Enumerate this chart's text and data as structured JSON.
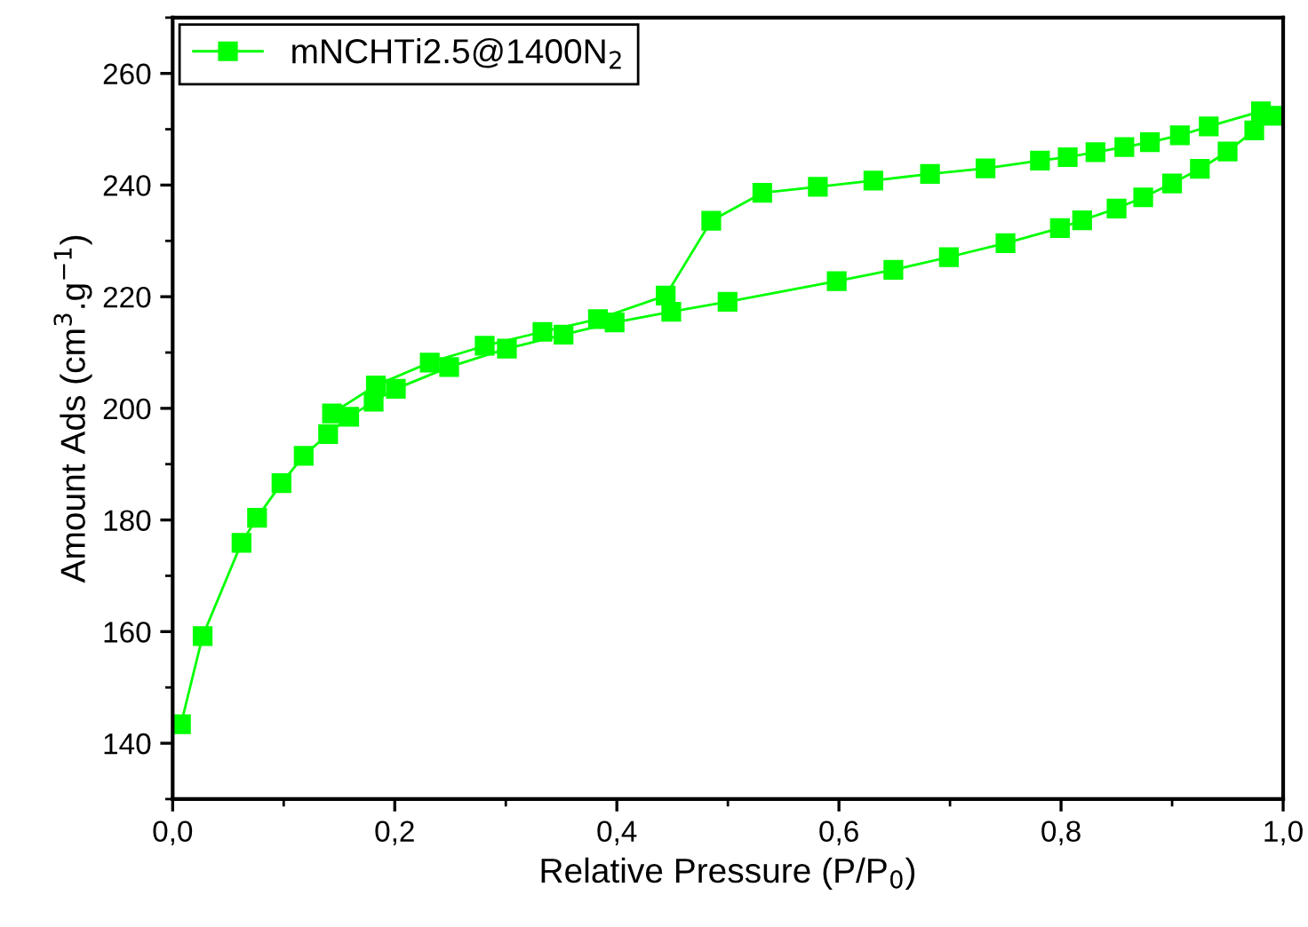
{
  "chart_data": {
    "type": "line",
    "xlabel": "Relative Pressure (P/P$_{0}$)",
    "ylabel": "Amount Ads (cm$^{3}$.g$^{−1}$)",
    "xlim": [
      0,
      1
    ],
    "ylim": [
      130,
      270
    ],
    "xticks": [
      {
        "value": 0,
        "label": "0,0"
      },
      {
        "value": 0.2,
        "label": "0,2"
      },
      {
        "value": 0.4,
        "label": "0,4"
      },
      {
        "value": 0.6,
        "label": "0,6"
      },
      {
        "value": 0.8,
        "label": "0,8"
      },
      {
        "value": 1,
        "label": "1,0"
      }
    ],
    "yticks": [
      140,
      160,
      180,
      200,
      220,
      240,
      260
    ],
    "grid": false,
    "legend": "top left",
    "marker": "square",
    "line_style": "solid",
    "series": [
      {
        "name": "mNCHTi2.5@1400N$_{2}$",
        "color": "#00ff00",
        "x": [
          0.0075,
          0.027,
          0.062,
          0.076,
          0.098,
          0.118,
          0.14,
          0.159,
          0.181,
          0.201,
          0.249,
          0.301,
          0.352,
          0.398,
          0.449,
          0.4997,
          0.598,
          0.649,
          0.699,
          0.75,
          0.799,
          0.819,
          0.85,
          0.874,
          0.9,
          0.925,
          0.95,
          0.974,
          0.9915,
          0.98,
          0.933,
          0.907,
          0.88,
          0.857,
          0.831,
          0.806,
          0.781,
          0.732,
          0.682,
          0.631,
          0.581,
          0.531,
          0.485,
          0.444,
          0.383,
          0.333,
          0.281,
          0.2315,
          0.183,
          0.1435
        ],
        "values": [
          143.4,
          159.2,
          175.9,
          180.4,
          186.6,
          191.5,
          195.4,
          198.5,
          201.2,
          203.5,
          207.4,
          210.7,
          213.2,
          215.4,
          217.3,
          219.1,
          222.8,
          224.8,
          227.1,
          229.6,
          232.3,
          233.7,
          235.8,
          237.8,
          240.3,
          242.9,
          246.0,
          249.8,
          252.4,
          253.2,
          250.5,
          248.9,
          247.7,
          246.8,
          245.9,
          245.0,
          244.4,
          243.0,
          242.0,
          240.8,
          239.7,
          238.6,
          233.6,
          220.2,
          216.0,
          213.7,
          211.2,
          208.2,
          204.1,
          199.1
        ]
      }
    ]
  }
}
